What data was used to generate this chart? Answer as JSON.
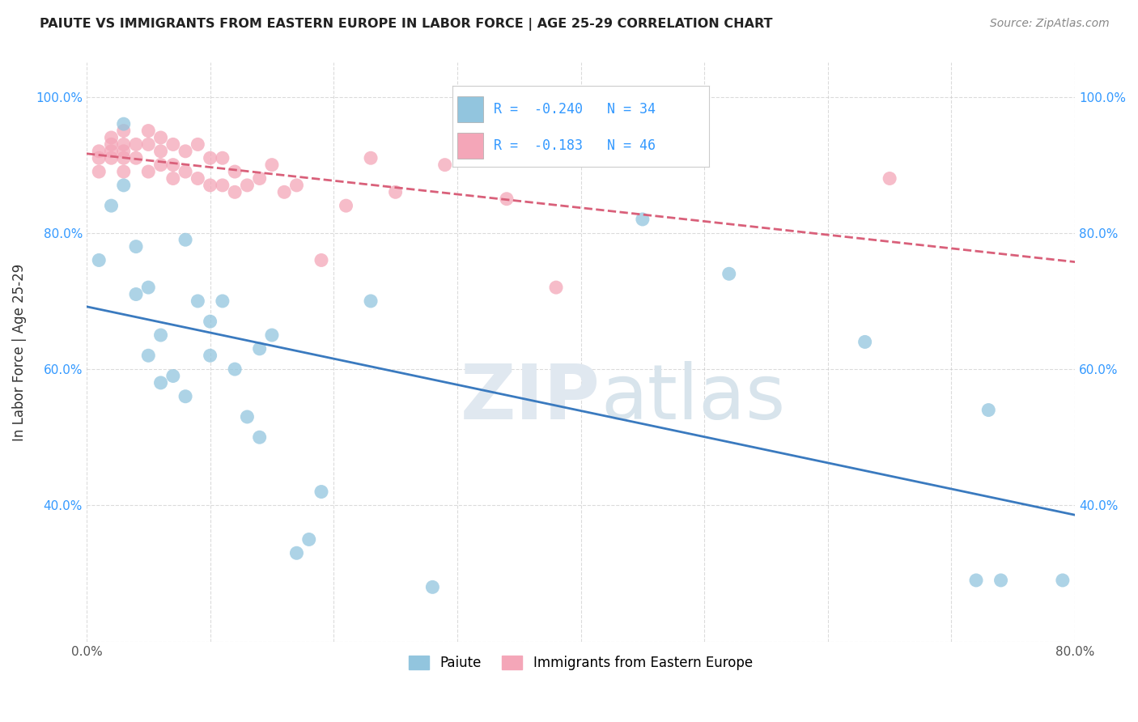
{
  "title": "PAIUTE VS IMMIGRANTS FROM EASTERN EUROPE IN LABOR FORCE | AGE 25-29 CORRELATION CHART",
  "source": "Source: ZipAtlas.com",
  "ylabel": "In Labor Force | Age 25-29",
  "xlim": [
    0.0,
    0.8
  ],
  "ylim": [
    0.2,
    1.05
  ],
  "xticks": [
    0.0,
    0.1,
    0.2,
    0.3,
    0.4,
    0.5,
    0.6,
    0.7,
    0.8
  ],
  "yticks": [
    0.2,
    0.4,
    0.6,
    0.8,
    1.0
  ],
  "ytick_labels": [
    "",
    "40.0%",
    "60.0%",
    "80.0%",
    "100.0%"
  ],
  "xtick_labels": [
    "0.0%",
    "",
    "",
    "",
    "",
    "",
    "",
    "",
    "80.0%"
  ],
  "legend_blue_label": "Paiute",
  "legend_pink_label": "Immigrants from Eastern Europe",
  "R_blue": -0.24,
  "N_blue": 34,
  "R_pink": -0.183,
  "N_pink": 46,
  "blue_color": "#92c5de",
  "pink_color": "#f4a6b8",
  "blue_line_color": "#3a7abf",
  "pink_line_color": "#d9607a",
  "watermark_zip": "ZIP",
  "watermark_atlas": "atlas",
  "background_color": "#ffffff",
  "grid_color": "#cccccc",
  "paiute_x": [
    0.01,
    0.02,
    0.03,
    0.03,
    0.04,
    0.04,
    0.05,
    0.05,
    0.06,
    0.06,
    0.07,
    0.08,
    0.08,
    0.09,
    0.1,
    0.1,
    0.11,
    0.12,
    0.13,
    0.14,
    0.14,
    0.15,
    0.17,
    0.18,
    0.19,
    0.23,
    0.28,
    0.45,
    0.52,
    0.63,
    0.72,
    0.73,
    0.74,
    0.79
  ],
  "paiute_y": [
    0.76,
    0.84,
    0.96,
    0.87,
    0.78,
    0.71,
    0.72,
    0.62,
    0.65,
    0.58,
    0.59,
    0.79,
    0.56,
    0.7,
    0.67,
    0.62,
    0.7,
    0.6,
    0.53,
    0.5,
    0.63,
    0.65,
    0.33,
    0.35,
    0.42,
    0.7,
    0.28,
    0.82,
    0.74,
    0.64,
    0.29,
    0.54,
    0.29,
    0.29
  ],
  "eastern_x": [
    0.01,
    0.01,
    0.01,
    0.02,
    0.02,
    0.02,
    0.02,
    0.03,
    0.03,
    0.03,
    0.03,
    0.03,
    0.04,
    0.04,
    0.05,
    0.05,
    0.05,
    0.06,
    0.06,
    0.06,
    0.07,
    0.07,
    0.07,
    0.08,
    0.08,
    0.09,
    0.09,
    0.1,
    0.1,
    0.11,
    0.11,
    0.12,
    0.12,
    0.13,
    0.14,
    0.15,
    0.16,
    0.17,
    0.19,
    0.21,
    0.23,
    0.25,
    0.29,
    0.34,
    0.38,
    0.65
  ],
  "eastern_y": [
    0.92,
    0.91,
    0.89,
    0.94,
    0.93,
    0.92,
    0.91,
    0.95,
    0.93,
    0.92,
    0.91,
    0.89,
    0.93,
    0.91,
    0.95,
    0.93,
    0.89,
    0.94,
    0.92,
    0.9,
    0.93,
    0.9,
    0.88,
    0.92,
    0.89,
    0.93,
    0.88,
    0.91,
    0.87,
    0.91,
    0.87,
    0.89,
    0.86,
    0.87,
    0.88,
    0.9,
    0.86,
    0.87,
    0.76,
    0.84,
    0.91,
    0.86,
    0.9,
    0.85,
    0.72,
    0.88
  ]
}
